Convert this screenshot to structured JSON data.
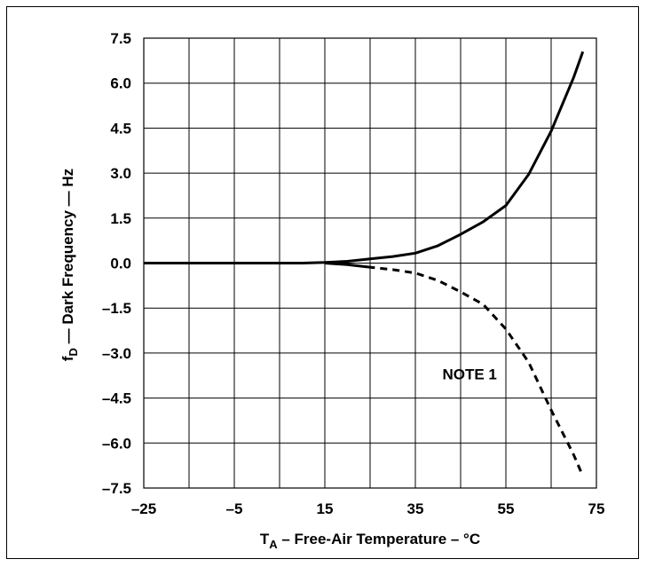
{
  "chart_data": {
    "type": "line",
    "title": "",
    "xlabel_main": "T",
    "xlabel_sub": "A",
    "xlabel_rest": " – Free-Air Temperature – °C",
    "ylabel_main": "f",
    "ylabel_sub": "D",
    "ylabel_rest": " — Dark Frequency — Hz",
    "xlim": [
      -25,
      75
    ],
    "ylim": [
      -7.5,
      7.5
    ],
    "x_ticks": [
      -25,
      -5,
      15,
      35,
      55,
      75
    ],
    "x_tick_labels": [
      "–25",
      "–5",
      "15",
      "35",
      "55",
      "75"
    ],
    "y_ticks": [
      7.5,
      6.0,
      4.5,
      3.0,
      1.5,
      0.0,
      -1.5,
      -3.0,
      -4.5,
      -6.0,
      -7.5
    ],
    "y_tick_labels": [
      "7.5",
      "6.0",
      "4.5",
      "3.0",
      "1.5",
      "0.0",
      "–1.5",
      "–3.0",
      "–4.5",
      "–6.0",
      "–7.5"
    ],
    "x_grid_lines": [
      -25,
      -15,
      -5,
      5,
      15,
      25,
      35,
      45,
      55,
      65,
      75
    ],
    "y_grid_lines": [
      7.5,
      6.0,
      4.5,
      3.0,
      1.5,
      0.0,
      -1.5,
      -3.0,
      -4.5,
      -6.0,
      -7.5
    ],
    "grid": true,
    "annotation": "NOTE 1",
    "annotation_at": [
      47,
      -3.7
    ],
    "series": [
      {
        "style": "solid",
        "x": [
          -25,
          -5,
          10,
          15,
          20,
          25,
          30,
          35,
          40,
          45,
          50,
          55,
          60,
          65,
          70,
          72
        ],
        "y": [
          0,
          0,
          0,
          0.02,
          0.06,
          0.14,
          0.22,
          0.33,
          0.58,
          0.96,
          1.38,
          1.92,
          2.95,
          4.4,
          6.2,
          7.05
        ]
      },
      {
        "style": "solid",
        "x": [
          15,
          20,
          24.5
        ],
        "y": [
          0,
          -0.05,
          -0.13
        ]
      },
      {
        "style": "dashed",
        "x": [
          24.5,
          30,
          35,
          40,
          45,
          50,
          55,
          60,
          65,
          70,
          72
        ],
        "y": [
          -0.13,
          -0.22,
          -0.33,
          -0.58,
          -0.96,
          -1.38,
          -2.2,
          -3.3,
          -4.9,
          -6.4,
          -7.1
        ]
      }
    ]
  }
}
